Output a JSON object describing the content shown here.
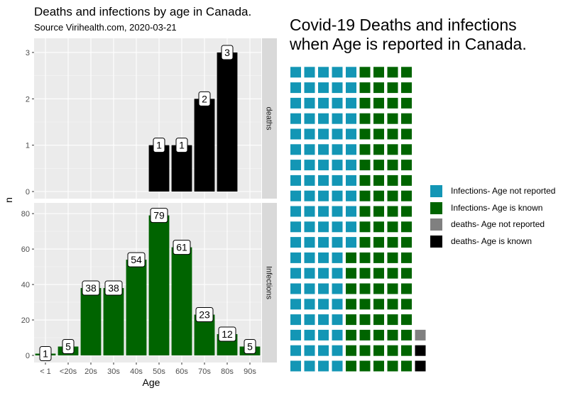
{
  "left_chart": {
    "title": "Deaths and infections by age in Canada.",
    "subtitle": "Source Virihealth.com, 2020-03-21",
    "xlabel": "Age",
    "ylabel": "n"
  },
  "right_chart": {
    "title_line1": "Covid-19 Deaths and infections",
    "title_line2": "when Age is reported in Canada."
  },
  "chart_data": [
    {
      "type": "bar",
      "title": "Deaths and infections by age in Canada.",
      "subtitle": "Source Virihealth.com, 2020-03-21",
      "xlabel": "Age",
      "ylabel": "n",
      "categories": [
        "< 1",
        "<20s",
        "20s",
        "30s",
        "40s",
        "50s",
        "60s",
        "70s",
        "80s",
        "90s"
      ],
      "facets": [
        {
          "name": "deaths",
          "color": "#000000",
          "values": [
            null,
            null,
            null,
            null,
            null,
            1,
            1,
            2,
            3,
            null
          ],
          "ylim": [
            0,
            3.15
          ],
          "yticks": [
            0,
            1,
            2,
            3
          ]
        },
        {
          "name": "Infections",
          "color": "#006400",
          "values": [
            1,
            5,
            38,
            38,
            54,
            79,
            61,
            23,
            12,
            5
          ],
          "ylim": [
            0,
            82
          ],
          "yticks": [
            0,
            20,
            40,
            60,
            80
          ]
        }
      ],
      "panel_background": "#ebebeb",
      "grid": true,
      "data_labels": true
    },
    {
      "type": "waffle",
      "title": "Covid-19 Deaths and infections when Age is reported in Canada.",
      "columns": [
        {
          "segments": [
            {
              "category": "Infections- Age not reported",
              "count": 20
            }
          ]
        },
        {
          "segments": [
            {
              "category": "Infections- Age not reported",
              "count": 20
            }
          ]
        },
        {
          "segments": [
            {
              "category": "Infections- Age not reported",
              "count": 20
            }
          ]
        },
        {
          "segments": [
            {
              "category": "Infections- Age not reported",
              "count": 20
            }
          ]
        },
        {
          "segments": [
            {
              "category": "Infections- Age is known",
              "count": 8
            },
            {
              "category": "Infections- Age not reported",
              "count": 12
            }
          ]
        },
        {
          "segments": [
            {
              "category": "Infections- Age is known",
              "count": 20
            }
          ]
        },
        {
          "segments": [
            {
              "category": "Infections- Age is known",
              "count": 20
            }
          ]
        },
        {
          "segments": [
            {
              "category": "Infections- Age is known",
              "count": 20
            }
          ]
        },
        {
          "segments": [
            {
              "category": "Infections- Age is known",
              "count": 20
            }
          ]
        },
        {
          "segments": [
            {
              "category": "deaths- Age is known",
              "count": 2
            },
            {
              "category": "deaths- Age not reported",
              "count": 1
            }
          ]
        }
      ],
      "legend_position": "right",
      "legend": [
        {
          "label": "Infections- Age not reported",
          "color": "#1396b5"
        },
        {
          "label": "Infections- Age is known",
          "color": "#006400"
        },
        {
          "label": "deaths- Age not reported",
          "color": "#808080"
        },
        {
          "label": "deaths- Age is known",
          "color": "#000000"
        }
      ]
    }
  ]
}
